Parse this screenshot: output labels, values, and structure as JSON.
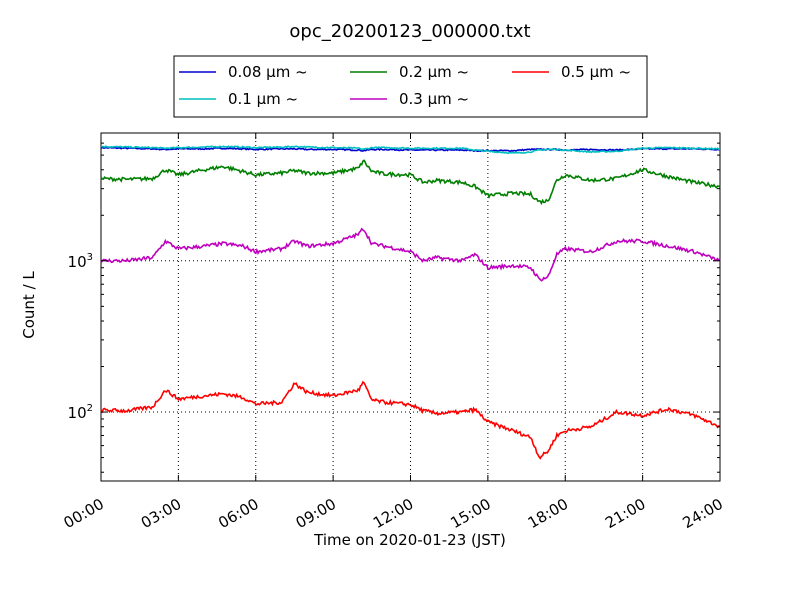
{
  "chart_data": {
    "type": "line",
    "title": "opc_20200123_000000.txt",
    "xlabel": "Time on 2020-01-23 (JST)",
    "ylabel": "Count / L",
    "yscale": "log",
    "xlim": [
      "2020-01-23 00:00",
      "2020-01-24 00:00"
    ],
    "ylim": [
      35,
      7000
    ],
    "x_tick_labels": [
      "00:00",
      "03:00",
      "06:00",
      "09:00",
      "12:00",
      "15:00",
      "18:00",
      "21:00",
      "24:00"
    ],
    "y_tick_labels": [
      {
        "value": 100,
        "base": "10",
        "exp": "2"
      },
      {
        "value": 1000,
        "base": "10",
        "exp": "3"
      }
    ],
    "grid": true,
    "legend_position": "top-center-outside",
    "x": [
      "00:00",
      "01:00",
      "02:00",
      "02:30",
      "03:00",
      "04:00",
      "04:45",
      "05:30",
      "06:00",
      "07:00",
      "07:30",
      "08:00",
      "09:00",
      "10:00",
      "10:10",
      "10:30",
      "11:00",
      "12:00",
      "12:30",
      "13:00",
      "14:00",
      "14:30",
      "15:00",
      "16:00",
      "16:40",
      "17:00",
      "17:20",
      "17:40",
      "18:00",
      "19:00",
      "20:00",
      "21:00",
      "22:00",
      "23:00",
      "24:00"
    ],
    "series": [
      {
        "name": "0.08 μm ~",
        "color": "#0000cc",
        "values": [
          5600,
          5550,
          5500,
          5450,
          5500,
          5500,
          5550,
          5500,
          5450,
          5500,
          5500,
          5450,
          5450,
          5400,
          5350,
          5450,
          5450,
          5400,
          5400,
          5400,
          5400,
          5350,
          5350,
          5350,
          5450,
          5450,
          5450,
          5450,
          5400,
          5450,
          5400,
          5500,
          5500,
          5500,
          5450
        ]
      },
      {
        "name": "0.1 μm ~",
        "color": "#00bfbf",
        "values": [
          5700,
          5650,
          5600,
          5550,
          5600,
          5650,
          5700,
          5650,
          5600,
          5650,
          5700,
          5650,
          5600,
          5550,
          5450,
          5600,
          5600,
          5550,
          5550,
          5550,
          5550,
          5400,
          5300,
          5150,
          5250,
          5400,
          5450,
          5450,
          5400,
          5250,
          5300,
          5550,
          5600,
          5550,
          5500
        ]
      },
      {
        "name": "0.2 μm ~",
        "color": "#007f00",
        "values": [
          3500,
          3450,
          3500,
          4000,
          3700,
          4000,
          4200,
          3900,
          3700,
          3800,
          3950,
          3800,
          3800,
          4100,
          4600,
          3900,
          3750,
          3700,
          3300,
          3400,
          3300,
          3100,
          2700,
          2800,
          2750,
          2450,
          2500,
          3400,
          3700,
          3400,
          3500,
          4000,
          3600,
          3300,
          3100
        ]
      },
      {
        "name": "0.3 μm ~",
        "color": "#bf00bf",
        "values": [
          1000,
          1000,
          1050,
          1350,
          1200,
          1250,
          1300,
          1250,
          1150,
          1200,
          1350,
          1250,
          1300,
          1500,
          1650,
          1300,
          1250,
          1150,
          1000,
          1050,
          1000,
          1100,
          900,
          930,
          900,
          750,
          780,
          1100,
          1200,
          1150,
          1350,
          1350,
          1250,
          1150,
          1000
        ]
      },
      {
        "name": "0.5 μm ~",
        "color": "#ff0000",
        "values": [
          103,
          102,
          108,
          140,
          122,
          128,
          132,
          125,
          113,
          116,
          155,
          135,
          128,
          140,
          158,
          120,
          116,
          112,
          102,
          98,
          100,
          104,
          86,
          75,
          68,
          50,
          55,
          70,
          75,
          80,
          100,
          95,
          105,
          95,
          80
        ]
      }
    ]
  }
}
